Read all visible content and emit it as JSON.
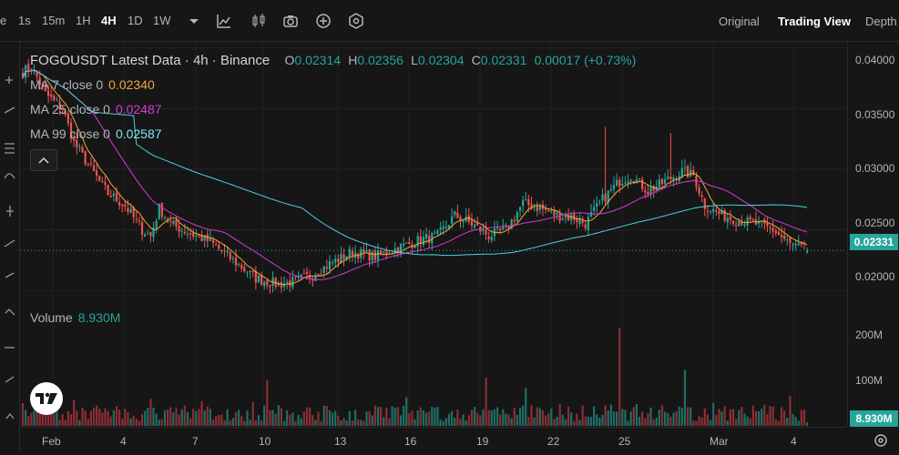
{
  "toolbar": {
    "partial_label": "e",
    "intervals": [
      "1s",
      "15m",
      "1H",
      "4H",
      "1D",
      "1W"
    ],
    "active_interval": "4H",
    "icons": [
      "chevron-down-icon",
      "line-chart-icon",
      "candles-icon",
      "camera-icon",
      "add-circle-icon",
      "hexagon-icon"
    ],
    "views": [
      "Original",
      "Trading View",
      "Depth"
    ],
    "active_view": "Trading View"
  },
  "legend": {
    "symbol": "FOGOUSDT Latest Data · 4h · Binance",
    "o_label": "O",
    "o": "0.02314",
    "h_label": "H",
    "h": "0.02356",
    "l_label": "L",
    "l": "0.02304",
    "c_label": "C",
    "c": "0.02331",
    "change": "0.00017 (+0.73%)"
  },
  "ma": [
    {
      "label": "MA 7 close 0",
      "value": "0.02340",
      "color": "#f0a73a"
    },
    {
      "label": "MA 25 close 0",
      "value": "0.02487",
      "color": "#d43bd4"
    },
    {
      "label": "MA 99 close 0",
      "value": "0.02587",
      "color": "#4dd0e1"
    }
  ],
  "volume_legend": {
    "label": "Volume",
    "value": "8.930M"
  },
  "price_scale": {
    "ticks": [
      "0.04000",
      "0.03500",
      "0.03000",
      "0.02500",
      "0.02000"
    ],
    "current": "0.02331"
  },
  "volume_scale": {
    "ticks": [
      "200M",
      "100M"
    ],
    "current": "8.930M"
  },
  "time_axis": {
    "ticks": [
      "Feb",
      "4",
      "7",
      "10",
      "13",
      "16",
      "19",
      "22",
      "25",
      "Mar",
      "4"
    ]
  },
  "colors": {
    "up": "#26a69a",
    "down": "#ef5350",
    "up_vol": "#1e6e66",
    "down_vol": "#8a2f35"
  },
  "chart_data": {
    "type": "candlestick",
    "symbol": "FOGOUSDT",
    "ylim": [
      0.0195,
      0.0405
    ],
    "volume_ylim": [
      0,
      250
    ],
    "x_labels": [
      "Feb",
      "4",
      "7",
      "10",
      "13",
      "16",
      "19",
      "22",
      "25",
      "Mar",
      "4"
    ],
    "close_anchors": [
      [
        0,
        0.038
      ],
      [
        3,
        0.0385
      ],
      [
        8,
        0.0362
      ],
      [
        14,
        0.035
      ],
      [
        18,
        0.0322
      ],
      [
        24,
        0.03
      ],
      [
        30,
        0.028
      ],
      [
        36,
        0.027
      ],
      [
        42,
        0.025
      ],
      [
        45,
        0.0245
      ],
      [
        48,
        0.0268
      ],
      [
        52,
        0.0255
      ],
      [
        58,
        0.0248
      ],
      [
        66,
        0.024
      ],
      [
        74,
        0.0225
      ],
      [
        82,
        0.021
      ],
      [
        90,
        0.0205
      ],
      [
        96,
        0.0208
      ],
      [
        102,
        0.0213
      ],
      [
        108,
        0.0222
      ],
      [
        116,
        0.0232
      ],
      [
        124,
        0.0228
      ],
      [
        132,
        0.0235
      ],
      [
        140,
        0.0242
      ],
      [
        146,
        0.0245
      ],
      [
        152,
        0.0262
      ],
      [
        158,
        0.0255
      ],
      [
        164,
        0.0245
      ],
      [
        170,
        0.025
      ],
      [
        176,
        0.0272
      ],
      [
        182,
        0.0268
      ],
      [
        188,
        0.0262
      ],
      [
        194,
        0.026
      ],
      [
        198,
        0.0255
      ],
      [
        204,
        0.0275
      ],
      [
        210,
        0.029
      ],
      [
        214,
        0.0295
      ],
      [
        220,
        0.0282
      ],
      [
        226,
        0.029
      ],
      [
        232,
        0.0298
      ],
      [
        236,
        0.0295
      ],
      [
        240,
        0.027
      ],
      [
        246,
        0.0262
      ],
      [
        252,
        0.0258
      ],
      [
        258,
        0.0255
      ],
      [
        264,
        0.025
      ],
      [
        270,
        0.0238
      ],
      [
        276,
        0.0233
      ]
    ],
    "count": 277,
    "volume_spikes": {
      "210": 245,
      "86": 115,
      "233": 140,
      "163": 120,
      "177": 95
    }
  }
}
